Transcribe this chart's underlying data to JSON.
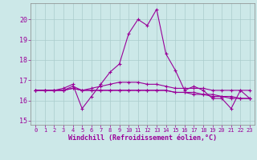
{
  "xlabel": "Windchill (Refroidissement éolien,°C)",
  "background_color": "#cce8e8",
  "grid_color": "#aacccc",
  "line_color": "#990099",
  "x_hours": [
    0,
    1,
    2,
    3,
    4,
    5,
    6,
    7,
    8,
    9,
    10,
    11,
    12,
    13,
    14,
    15,
    16,
    17,
    18,
    19,
    20,
    21,
    22,
    23
  ],
  "series": [
    [
      16.5,
      16.5,
      16.5,
      16.6,
      16.8,
      15.6,
      16.2,
      16.8,
      17.4,
      17.8,
      19.3,
      20.0,
      19.7,
      20.5,
      18.3,
      17.5,
      16.5,
      16.7,
      16.5,
      16.1,
      16.1,
      15.6,
      16.5,
      16.1
    ],
    [
      16.5,
      16.5,
      16.5,
      16.5,
      16.6,
      16.5,
      16.5,
      16.5,
      16.5,
      16.5,
      16.5,
      16.5,
      16.5,
      16.5,
      16.5,
      16.4,
      16.4,
      16.3,
      16.3,
      16.2,
      16.2,
      16.1,
      16.1,
      16.1
    ],
    [
      16.5,
      16.5,
      16.5,
      16.5,
      16.7,
      16.5,
      16.6,
      16.7,
      16.8,
      16.9,
      16.9,
      16.9,
      16.8,
      16.8,
      16.7,
      16.6,
      16.6,
      16.6,
      16.6,
      16.5,
      16.5,
      16.5,
      16.5,
      16.5
    ],
    [
      16.5,
      16.5,
      16.5,
      16.5,
      16.6,
      16.5,
      16.5,
      16.5,
      16.5,
      16.5,
      16.5,
      16.5,
      16.5,
      16.5,
      16.5,
      16.4,
      16.4,
      16.4,
      16.3,
      16.3,
      16.2,
      16.2,
      16.1,
      16.1
    ]
  ],
  "ylim": [
    14.8,
    20.8
  ],
  "yticks": [
    15,
    16,
    17,
    18,
    19,
    20
  ],
  "xticks": [
    0,
    1,
    2,
    3,
    4,
    5,
    6,
    7,
    8,
    9,
    10,
    11,
    12,
    13,
    14,
    15,
    16,
    17,
    18,
    19,
    20,
    21,
    22,
    23
  ]
}
